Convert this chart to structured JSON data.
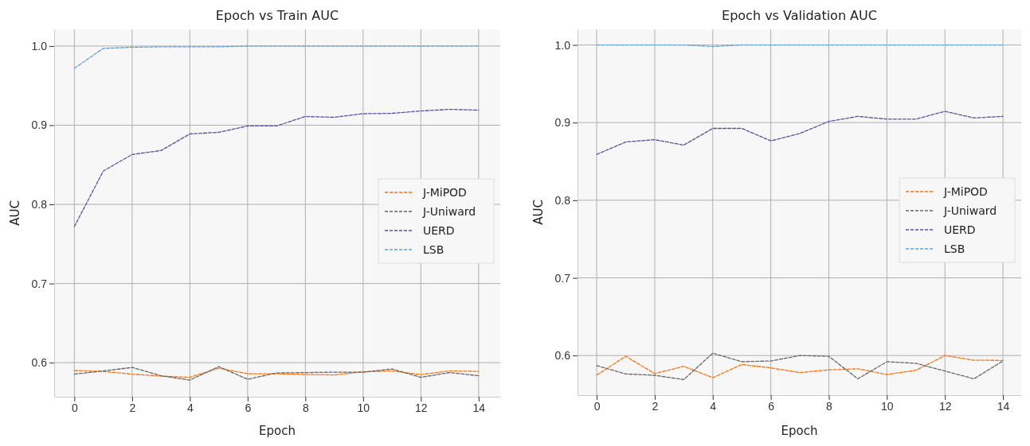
{
  "chart_data": [
    {
      "type": "line",
      "title": "Epoch vs Train AUC",
      "xlabel": "Epoch",
      "ylabel": "AUC",
      "x": [
        0,
        1,
        2,
        3,
        4,
        5,
        6,
        7,
        8,
        9,
        10,
        11,
        12,
        13,
        14
      ],
      "xlim": [
        -0.7,
        14.75
      ],
      "xticks": [
        0,
        2,
        4,
        6,
        8,
        10,
        12,
        14
      ],
      "ylim": [
        0.557,
        1.021
      ],
      "yticks": [
        {
          "value": 0.6,
          "label": "0.6"
        },
        {
          "value": 0.7,
          "label": "0.7"
        },
        {
          "value": 0.8,
          "label": "0.8"
        },
        {
          "value": 0.9,
          "label": "0.9"
        },
        {
          "value": 1.0,
          "label": "1.0"
        }
      ],
      "grid": true,
      "legend": "right",
      "line_style": "dashed",
      "marker": "none",
      "series": [
        {
          "name": "J-MiPOD",
          "color": "#ff7010",
          "values": [
            0.59,
            0.589,
            0.5855,
            0.583,
            0.5815,
            0.593,
            0.586,
            0.586,
            0.585,
            0.5845,
            0.5885,
            0.5895,
            0.585,
            0.5895,
            0.589
          ]
        },
        {
          "name": "J-Uniward",
          "color": "#666666",
          "values": [
            0.5855,
            0.5895,
            0.594,
            0.5835,
            0.578,
            0.595,
            0.579,
            0.587,
            0.5875,
            0.588,
            0.588,
            0.592,
            0.5815,
            0.5875,
            0.5835
          ]
        },
        {
          "name": "UERD",
          "color": "#5b50a0",
          "values": [
            0.772,
            0.842,
            0.863,
            0.868,
            0.889,
            0.891,
            0.899,
            0.899,
            0.911,
            0.91,
            0.9145,
            0.915,
            0.918,
            0.92,
            0.919
          ]
        },
        {
          "name": "LSB",
          "color": "#5ba3da",
          "values": [
            0.972,
            0.997,
            0.9985,
            0.999,
            0.999,
            0.999,
            1.0,
            1.0,
            1.0,
            1.0,
            1.0,
            1.0,
            1.0,
            1.0,
            1.0
          ]
        }
      ]
    },
    {
      "type": "line",
      "title": "Epoch vs Validation AUC",
      "xlabel": "Epoch",
      "ylabel": "AUC",
      "x": [
        0,
        1,
        2,
        3,
        4,
        5,
        6,
        7,
        8,
        9,
        10,
        11,
        12,
        13,
        14
      ],
      "xlim": [
        -0.66,
        14.63
      ],
      "xticks": [
        0,
        2,
        4,
        6,
        8,
        10,
        12,
        14
      ],
      "ylim": [
        0.549,
        1.02
      ],
      "yticks": [
        {
          "value": 0.6,
          "label": "0.6"
        },
        {
          "value": 0.7,
          "label": "0.7"
        },
        {
          "value": 0.8,
          "label": "0.8"
        },
        {
          "value": 0.9,
          "label": "0.9"
        },
        {
          "value": 1.0,
          "label": "1.0"
        }
      ],
      "grid": true,
      "legend": "right",
      "line_style": "dashed",
      "marker": "none",
      "series": [
        {
          "name": "J-MiPOD",
          "color": "#ff7010",
          "values": [
            0.5748,
            0.599,
            0.5767,
            0.586,
            0.5715,
            0.5885,
            0.584,
            0.578,
            0.5815,
            0.583,
            0.5755,
            0.581,
            0.6,
            0.594,
            0.5937
          ]
        },
        {
          "name": "J-Uniward",
          "color": "#666666",
          "values": [
            0.587,
            0.5763,
            0.5745,
            0.569,
            0.603,
            0.592,
            0.593,
            0.6,
            0.599,
            0.57,
            0.592,
            0.59,
            0.58,
            0.57,
            0.593
          ]
        },
        {
          "name": "UERD",
          "color": "#5b50a0",
          "values": [
            0.859,
            0.875,
            0.878,
            0.871,
            0.8925,
            0.8925,
            0.8765,
            0.886,
            0.9015,
            0.908,
            0.9045,
            0.9045,
            0.9145,
            0.906,
            0.908
          ]
        },
        {
          "name": "LSB",
          "color": "#5ba3da",
          "values": [
            1.0,
            1.0,
            1.0,
            1.0,
            0.998,
            1.0,
            1.0,
            1.0,
            1.0,
            1.0,
            1.0,
            1.0,
            1.0,
            1.0,
            1.0
          ]
        }
      ]
    }
  ]
}
